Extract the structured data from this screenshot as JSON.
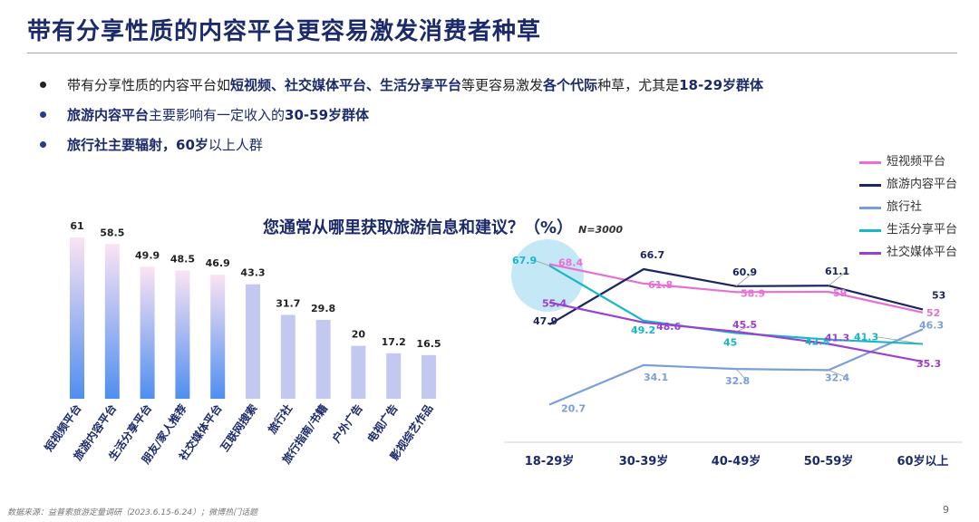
{
  "page": {
    "title": "带有分享性质的内容平台更容易激发消费者种草",
    "footer_source": "数据来源：益普索旅游定量调研（2023.6.15-6.24）；微博热门话题",
    "page_number": "9"
  },
  "bullets": [
    {
      "parts": [
        {
          "text": "带有分享性质的内容平台如",
          "bold": false
        },
        {
          "text": "短视频、社交媒体平台、生活分享平台",
          "bold": true
        },
        {
          "text": "等更容易激发",
          "bold": false
        },
        {
          "text": "各个代际",
          "bold": true
        },
        {
          "text": "种草，尤其是",
          "bold": false
        },
        {
          "text": "18-29岁群体",
          "bold": true
        }
      ]
    },
    {
      "parts": [
        {
          "text": "旅游内容平台",
          "bold": true
        },
        {
          "text": "主要影响有一定收入的",
          "bold": false
        },
        {
          "text": "30-59岁群体",
          "bold": true
        }
      ]
    },
    {
      "parts": [
        {
          "text": "旅行社主要辐射，60岁",
          "bold": true
        },
        {
          "text": "以上人群",
          "bold": false
        }
      ]
    }
  ],
  "chart_heading": {
    "text": "您通常从哪里获取旅游信息和建议？（%）",
    "note": "N=3000"
  },
  "chart_data": [
    {
      "type": "bar",
      "categories": [
        "短视频平台",
        "旅游内容平台",
        "生活分享平台",
        "朋友/家人推荐",
        "社交媒体平台",
        "互联网搜索",
        "旅行社",
        "旅行指南/书籍",
        "户外广告",
        "电视广告",
        "影视综艺作品"
      ],
      "values": [
        61,
        58.5,
        49.9,
        48.5,
        46.9,
        43.3,
        31.7,
        29.8,
        20,
        17.2,
        16.5
      ],
      "ylim": [
        0,
        61
      ],
      "highlight_count": 5,
      "colors": {
        "gradient_top": "#fbe3f3",
        "gradient_bottom": "#4f8ef0",
        "plain": "#c3c8f0"
      }
    },
    {
      "type": "line",
      "categories": [
        "18-29岁",
        "30-39岁",
        "40-49岁",
        "50-59岁",
        "60岁以上"
      ],
      "ylim": [
        15,
        75
      ],
      "series": [
        {
          "name": "短视频平台",
          "values": [
            68.4,
            61.8,
            58.9,
            59,
            52
          ],
          "color": "#e66fd6"
        },
        {
          "name": "旅游内容平台",
          "values": [
            47.9,
            66.7,
            60.9,
            61.1,
            53
          ],
          "color": "#1b2560"
        },
        {
          "name": "旅行社",
          "values": [
            20.7,
            34.1,
            32.8,
            32.4,
            46.3
          ],
          "color": "#7a9fd8"
        },
        {
          "name": "生活分享平台",
          "values": [
            67.9,
            49.2,
            45,
            42.8,
            41.3
          ],
          "color": "#17b7c9"
        },
        {
          "name": "社交媒体平台",
          "values": [
            55.4,
            48.6,
            45.5,
            41.3,
            35.3
          ],
          "color": "#9b3fcf"
        }
      ]
    }
  ]
}
